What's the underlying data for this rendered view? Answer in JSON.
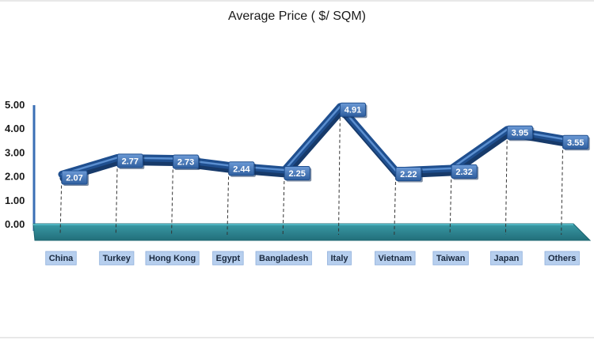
{
  "chart_data": {
    "type": "line",
    "title": "Average Price ( $/ SQM)",
    "xlabel": "",
    "ylabel": "",
    "categories": [
      "China",
      "Turkey",
      "Hong Kong",
      "Egypt",
      "Bangladesh",
      "Italy",
      "Vietnam",
      "Taiwan",
      "Japan",
      "Others"
    ],
    "series": [
      {
        "values": [
          2.07,
          2.77,
          2.73,
          2.44,
          2.25,
          4.91,
          2.22,
          2.32,
          3.95,
          3.55
        ]
      }
    ],
    "data_labels": [
      "2.07",
      "2.77",
      "2.73",
      "2.44",
      "2.25",
      "4.91",
      "2.22",
      "2.32",
      "3.95",
      "3.55"
    ],
    "ylim": [
      0,
      5
    ],
    "yticks": [
      0,
      1,
      2,
      3,
      4,
      5
    ],
    "ytick_labels": [
      "0.00",
      "1.00",
      "2.00",
      "3.00",
      "4.00",
      "5.00"
    ],
    "grid": false,
    "legend": "none",
    "colors": {
      "line": "#1f4f8f",
      "line_highlight": "#5b8fd0",
      "floor": "#2f8a96",
      "floor_edge": "#1c6470",
      "label_fill": "#4a7cc0",
      "category_fill": "#b7cfee"
    }
  }
}
